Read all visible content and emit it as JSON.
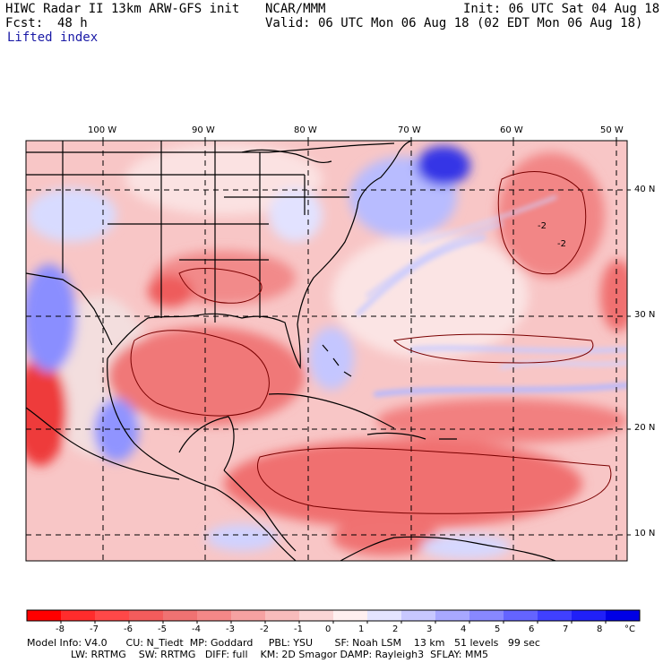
{
  "header": {
    "title": "HIWC Radar II 13km ARW-GFS init",
    "org": "NCAR/MMM",
    "init": "Init: 06 UTC Sat 04 Aug 18",
    "fcst_label": "Fcst:",
    "fcst_value": "48 h",
    "valid": "Valid: 06 UTC Mon 06 Aug 18 (02 EDT Mon 06 Aug 18)",
    "field": "Lifted index"
  },
  "map": {
    "lon_labels": [
      "100 W",
      "90 W",
      "80 W",
      "70 W",
      "60 W",
      "50 W"
    ],
    "lat_labels": [
      "40 N",
      "30 N",
      "20 N",
      "10 N"
    ],
    "contour_labels": [
      "-2",
      "-2"
    ],
    "colors": {
      "neg_strong": "#ff2a2a",
      "neg_mid": "#f26a6a",
      "neg_light": "#f8b4b4",
      "neutral": "#fbe9e9",
      "pos_light": "#cfd3ff",
      "pos_mid": "#6f74ff",
      "pos_strong": "#2424e0",
      "coast": "#000000",
      "contour": "#7a0000"
    }
  },
  "colorbar": {
    "ticks": [
      "-8",
      "-7",
      "-6",
      "-5",
      "-4",
      "-3",
      "-2",
      "-1",
      "0",
      "1",
      "2",
      "3",
      "4",
      "5",
      "6",
      "7",
      "8"
    ],
    "unit": "°C",
    "colors": [
      "#ff0000",
      "#ff2c2c",
      "#ff4848",
      "#f35c5c",
      "#f07272",
      "#f48888",
      "#f6a2a2",
      "#f8bcbc",
      "#fad6d6",
      "#fff0f0",
      "#e4e4ff",
      "#c8c8ff",
      "#a8a8ff",
      "#8888ff",
      "#6464ff",
      "#4040ff",
      "#2020f8",
      "#0000e6"
    ]
  },
  "footer": {
    "line1": "Model Info: V4.0      CU: N_Tiedt  MP: Goddard     PBL: YSU       SF: Noah LSM    13 km   51 levels   99 sec",
    "line2": "              LW: RRTMG    SW: RRTMG   DIFF: full    KM: 2D Smagor DAMP: Rayleigh3  SFLAY: MM5"
  }
}
